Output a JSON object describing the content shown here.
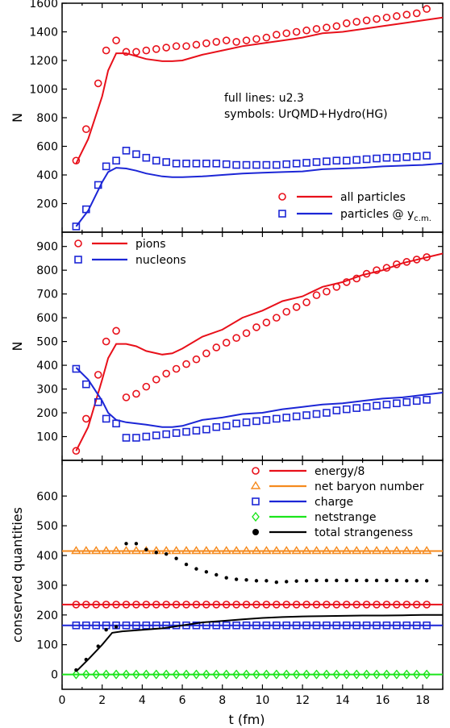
{
  "colors": {
    "red": "#e8101a",
    "blue": "#1c26d6",
    "orange": "#f58a1e",
    "green": "#1be51b",
    "black": "#000000"
  },
  "chart_data": [
    {
      "type": "line",
      "panel": "top",
      "ylabel": "N",
      "xlim": [
        0,
        19
      ],
      "ylim": [
        0,
        1600
      ],
      "yticks": [
        200,
        400,
        600,
        800,
        1000,
        1200,
        1400,
        1600
      ],
      "annotations": [
        "full lines: u2.3",
        "symbols: UrQMD+Hydro(HG)"
      ],
      "legend_position": "bottom-right",
      "series": [
        {
          "name": "all particles",
          "color": "#e8101a",
          "marker": "circle",
          "line": {
            "x": [
              0.7,
              1.3,
              2,
              2.3,
              2.7,
              3.2,
              3.7,
              4.2,
              5,
              5.5,
              6,
              7,
              8,
              9,
              10,
              11,
              12,
              13,
              14,
              15,
              16,
              17,
              18,
              19
            ],
            "y": [
              480,
              650,
              950,
              1130,
              1250,
              1250,
              1230,
              1210,
              1195,
              1195,
              1200,
              1240,
              1270,
              1300,
              1320,
              1340,
              1360,
              1390,
              1400,
              1420,
              1440,
              1460,
              1480,
              1500
            ]
          },
          "points": {
            "x": [
              0.7,
              1.2,
              1.8,
              2.2,
              2.7,
              3.2,
              3.7,
              4.2,
              4.7,
              5.2,
              5.7,
              6.2,
              6.7,
              7.2,
              7.7,
              8.2,
              8.7,
              9.2,
              9.7,
              10.2,
              10.7,
              11.2,
              11.7,
              12.2,
              12.7,
              13.2,
              13.7,
              14.2,
              14.7,
              15.2,
              15.7,
              16.2,
              16.7,
              17.2,
              17.7,
              18.2
            ],
            "y": [
              500,
              720,
              1040,
              1270,
              1340,
              1260,
              1260,
              1270,
              1280,
              1290,
              1300,
              1300,
              1310,
              1320,
              1330,
              1340,
              1330,
              1340,
              1350,
              1360,
              1380,
              1390,
              1400,
              1410,
              1420,
              1430,
              1440,
              1460,
              1470,
              1480,
              1490,
              1500,
              1510,
              1520,
              1530,
              1560
            ]
          }
        },
        {
          "name": "particles @ y",
          "name_sub": "c.m.",
          "color": "#1c26d6",
          "marker": "square",
          "line": {
            "x": [
              0.7,
              1.3,
              2,
              2.3,
              2.7,
              3.2,
              3.7,
              4.2,
              5,
              5.5,
              6,
              7,
              8,
              9,
              10,
              11,
              12,
              13,
              14,
              15,
              16,
              17,
              18,
              19
            ],
            "y": [
              40,
              150,
              350,
              420,
              450,
              445,
              430,
              410,
              390,
              385,
              385,
              390,
              400,
              410,
              415,
              420,
              425,
              440,
              445,
              450,
              460,
              465,
              470,
              480
            ]
          },
          "points": {
            "x": [
              0.7,
              1.2,
              1.8,
              2.2,
              2.7,
              3.2,
              3.7,
              4.2,
              4.7,
              5.2,
              5.7,
              6.2,
              6.7,
              7.2,
              7.7,
              8.2,
              8.7,
              9.2,
              9.7,
              10.2,
              10.7,
              11.2,
              11.7,
              12.2,
              12.7,
              13.2,
              13.7,
              14.2,
              14.7,
              15.2,
              15.7,
              16.2,
              16.7,
              17.2,
              17.7,
              18.2
            ],
            "y": [
              40,
              160,
              330,
              460,
              500,
              570,
              545,
              520,
              500,
              490,
              480,
              480,
              480,
              480,
              480,
              475,
              470,
              470,
              470,
              470,
              470,
              475,
              480,
              485,
              490,
              495,
              500,
              500,
              505,
              510,
              515,
              520,
              520,
              525,
              530,
              535
            ]
          }
        }
      ]
    },
    {
      "type": "line",
      "panel": "middle",
      "ylabel": "N",
      "xlim": [
        0,
        19
      ],
      "ylim": [
        0,
        960
      ],
      "yticks": [
        100,
        200,
        300,
        400,
        500,
        600,
        700,
        800,
        900
      ],
      "legend_position": "top-left",
      "series": [
        {
          "name": "pions",
          "color": "#e8101a",
          "marker": "circle",
          "line": {
            "x": [
              0.7,
              1.3,
              2,
              2.3,
              2.7,
              3.2,
              3.7,
              4.2,
              5,
              5.5,
              6,
              7,
              8,
              9,
              10,
              11,
              12,
              13,
              14,
              15,
              16,
              17,
              18,
              19
            ],
            "y": [
              40,
              140,
              340,
              430,
              490,
              490,
              480,
              460,
              445,
              450,
              470,
              520,
              550,
              600,
              630,
              670,
              690,
              730,
              750,
              780,
              800,
              830,
              850,
              870
            ]
          },
          "points": {
            "x": [
              0.7,
              1.2,
              1.8,
              2.2,
              2.7,
              3.2,
              3.7,
              4.2,
              4.7,
              5.2,
              5.7,
              6.2,
              6.7,
              7.2,
              7.7,
              8.2,
              8.7,
              9.2,
              9.7,
              10.2,
              10.7,
              11.2,
              11.7,
              12.2,
              12.7,
              13.2,
              13.7,
              14.2,
              14.7,
              15.2,
              15.7,
              16.2,
              16.7,
              17.2,
              17.7,
              18.2
            ],
            "y": [
              40,
              175,
              360,
              500,
              545,
              265,
              280,
              310,
              340,
              365,
              385,
              405,
              425,
              450,
              475,
              495,
              515,
              535,
              560,
              580,
              600,
              625,
              645,
              665,
              695,
              710,
              730,
              750,
              765,
              785,
              800,
              810,
              825,
              835,
              845,
              855
            ]
          }
        },
        {
          "name": "nucleons",
          "color": "#1c26d6",
          "marker": "square",
          "line": {
            "x": [
              0.7,
              1.3,
              2,
              2.3,
              2.7,
              3.2,
              3.7,
              4.2,
              5,
              5.5,
              6,
              7,
              8,
              9,
              10,
              11,
              12,
              13,
              14,
              15,
              16,
              17,
              18,
              19
            ],
            "y": [
              390,
              340,
              250,
              200,
              170,
              160,
              155,
              150,
              140,
              140,
              145,
              170,
              180,
              195,
              200,
              215,
              225,
              235,
              240,
              250,
              260,
              265,
              275,
              285
            ]
          },
          "points": {
            "x": [
              0.7,
              1.2,
              1.8,
              2.2,
              2.7,
              3.2,
              3.7,
              4.2,
              4.7,
              5.2,
              5.7,
              6.2,
              6.7,
              7.2,
              7.7,
              8.2,
              8.7,
              9.2,
              9.7,
              10.2,
              10.7,
              11.2,
              11.7,
              12.2,
              12.7,
              13.2,
              13.7,
              14.2,
              14.7,
              15.2,
              15.7,
              16.2,
              16.7,
              17.2,
              17.7,
              18.2
            ],
            "y": [
              385,
              320,
              245,
              175,
              155,
              95,
              95,
              100,
              105,
              110,
              115,
              120,
              125,
              130,
              140,
              145,
              155,
              160,
              165,
              170,
              175,
              180,
              185,
              190,
              195,
              200,
              210,
              215,
              220,
              225,
              230,
              235,
              240,
              245,
              250,
              255
            ]
          }
        }
      ]
    },
    {
      "type": "line",
      "panel": "bottom",
      "ylabel": "conserved quantities",
      "xlabel": "t (fm)",
      "xlim": [
        0,
        19
      ],
      "ylim": [
        -50,
        720
      ],
      "yticks": [
        0,
        100,
        200,
        300,
        400,
        500,
        600
      ],
      "xticks": [
        0,
        2,
        4,
        6,
        8,
        10,
        12,
        14,
        16,
        18
      ],
      "legend_position": "top-right",
      "series": [
        {
          "name": "energy/8",
          "color": "#e8101a",
          "marker": "circle",
          "line": {
            "x": [
              0,
              19
            ],
            "y": [
              235,
              235
            ]
          },
          "points_x_range": [
            0.7,
            18.2,
            0.5
          ],
          "points_y": 235
        },
        {
          "name": "net baryon number",
          "color": "#f58a1e",
          "marker": "triangle",
          "line": {
            "x": [
              0,
              19
            ],
            "y": [
              415,
              415
            ]
          },
          "points_x_range": [
            0.7,
            18.2,
            0.5
          ],
          "points_y": 415
        },
        {
          "name": "charge",
          "color": "#1c26d6",
          "marker": "square",
          "line": {
            "x": [
              0,
              19
            ],
            "y": [
              165,
              165
            ]
          },
          "points_x_range": [
            0.7,
            18.2,
            0.5
          ],
          "points_y": 165
        },
        {
          "name": "netstrange",
          "color": "#1be51b",
          "marker": "diamond",
          "line": {
            "x": [
              0,
              19
            ],
            "y": [
              0,
              0
            ]
          },
          "points_x_range": [
            0.7,
            18.2,
            0.5
          ],
          "points_y": 0
        },
        {
          "name": "total strangeness",
          "color": "#000000",
          "marker": "dot",
          "line": {
            "x": [
              0.7,
              1.3,
              2,
              2.5,
              3,
              4,
              5,
              6,
              7,
              8,
              9,
              10,
              11,
              12,
              13,
              14,
              15,
              16,
              17,
              18,
              19
            ],
            "y": [
              10,
              50,
              100,
              140,
              145,
              150,
              155,
              165,
              175,
              180,
              185,
              190,
              193,
              195,
              196,
              197,
              198,
              198,
              199,
              200,
              200
            ]
          },
          "points": {
            "x": [
              0.7,
              1.2,
              1.8,
              2.2,
              2.7,
              3.2,
              3.7,
              4.2,
              4.7,
              5.2,
              5.7,
              6.2,
              6.7,
              7.2,
              7.7,
              8.2,
              8.7,
              9.2,
              9.7,
              10.2,
              10.7,
              11.2,
              11.7,
              12.2,
              12.7,
              13.2,
              13.7,
              14.2,
              14.7,
              15.2,
              15.7,
              16.2,
              16.7,
              17.2,
              17.7,
              18.2
            ],
            "y": [
              15,
              50,
              95,
              150,
              160,
              440,
              440,
              420,
              410,
              405,
              390,
              370,
              355,
              345,
              335,
              325,
              320,
              318,
              315,
              315,
              310,
              312,
              314,
              315,
              316,
              316,
              316,
              316,
              316,
              316,
              316,
              316,
              316,
              315,
              315,
              315
            ]
          }
        }
      ]
    }
  ]
}
